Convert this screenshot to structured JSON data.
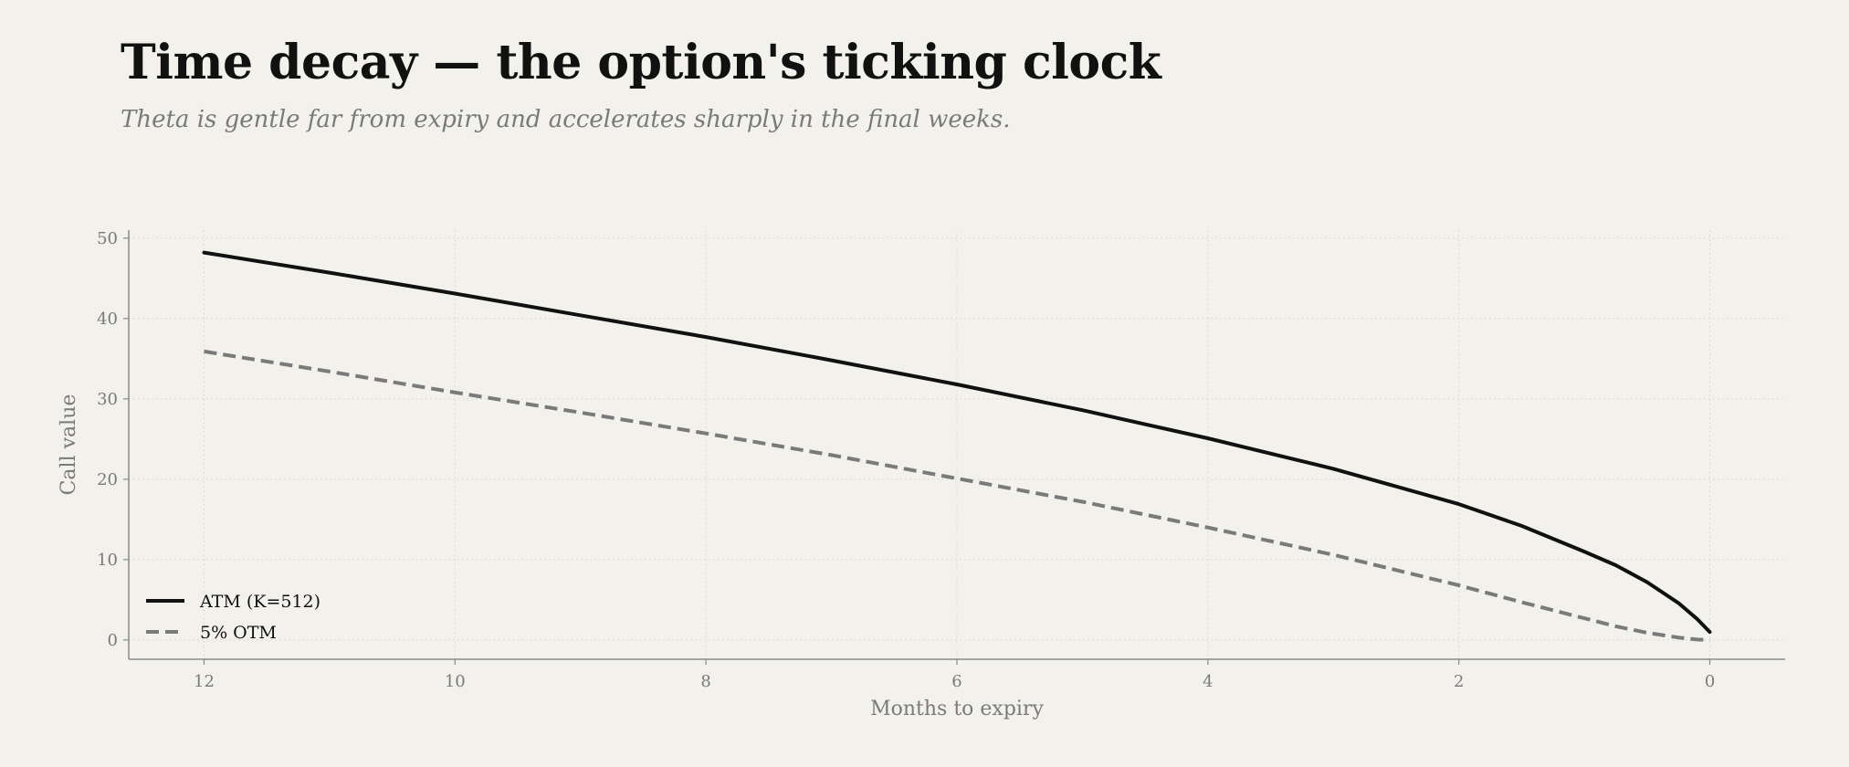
{
  "title": "Time decay — the option's ticking clock",
  "subtitle": "Theta is gentle far from expiry and accelerates sharply in the final weeks.",
  "chart_data": {
    "type": "line",
    "xlabel": "Months to expiry",
    "ylabel": "Call value",
    "xlim": [
      12.6,
      -0.6
    ],
    "ylim": [
      -2.4,
      51
    ],
    "x_reversed": true,
    "x_ticks": [
      12,
      10,
      8,
      6,
      4,
      2,
      0
    ],
    "y_ticks": [
      0,
      10,
      20,
      30,
      40,
      50
    ],
    "grid": true,
    "legend_position": "bottom-left",
    "series": [
      {
        "name": "ATM  (K=512)",
        "color": "#111111",
        "style": "solid",
        "x": [
          12,
          11,
          10,
          9,
          8,
          7,
          6,
          5,
          4,
          3,
          2,
          1.5,
          1,
          0.75,
          0.5,
          0.25,
          0.1,
          0
        ],
        "y": [
          48.2,
          45.7,
          43.1,
          40.4,
          37.7,
          34.8,
          31.8,
          28.6,
          25.1,
          21.3,
          16.9,
          14.2,
          11.0,
          9.3,
          7.2,
          4.6,
          2.6,
          1.0
        ]
      },
      {
        "name": "5% OTM",
        "color": "#7a7a7a",
        "style": "dashed",
        "x": [
          12,
          11,
          10,
          9,
          8,
          7,
          6,
          5,
          4,
          3,
          2,
          1.5,
          1,
          0.75,
          0.5,
          0.25,
          0.1,
          0
        ],
        "y": [
          35.9,
          33.4,
          30.8,
          28.3,
          25.7,
          23.0,
          20.1,
          17.2,
          14.0,
          10.6,
          6.8,
          4.7,
          2.7,
          1.7,
          0.9,
          0.3,
          0.05,
          0.0
        ]
      }
    ]
  }
}
